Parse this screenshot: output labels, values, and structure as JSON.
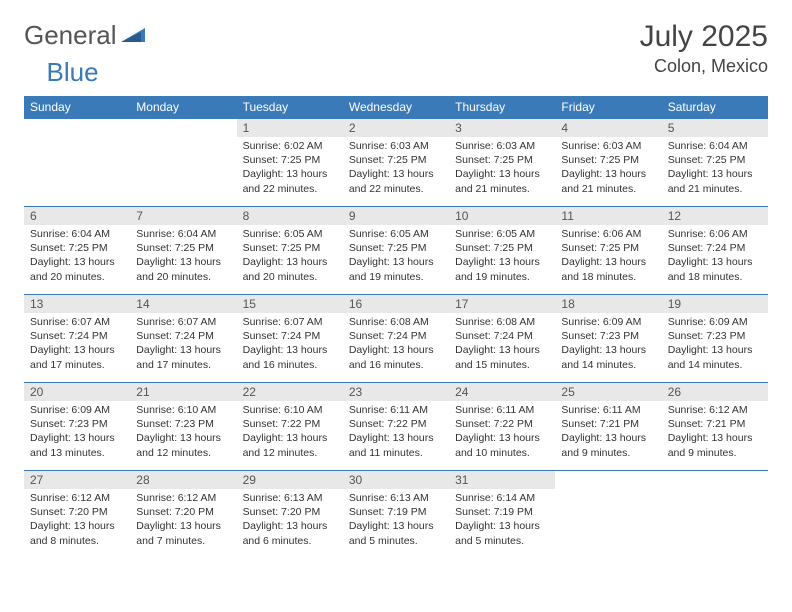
{
  "logo": {
    "text1": "General",
    "text2": "Blue"
  },
  "title": "July 2025",
  "location": "Colon, Mexico",
  "colors": {
    "header_bg": "#3a7ab8",
    "header_text": "#ffffff",
    "daynum_bg": "#e8e8e8",
    "text": "#333333",
    "logo_gray": "#555555",
    "logo_blue": "#3a7ab8"
  },
  "day_headers": [
    "Sunday",
    "Monday",
    "Tuesday",
    "Wednesday",
    "Thursday",
    "Friday",
    "Saturday"
  ],
  "weeks": [
    [
      {
        "num": "",
        "sunrise": "",
        "sunset": "",
        "daylight": "",
        "empty": true
      },
      {
        "num": "",
        "sunrise": "",
        "sunset": "",
        "daylight": "",
        "empty": true
      },
      {
        "num": "1",
        "sunrise": "Sunrise: 6:02 AM",
        "sunset": "Sunset: 7:25 PM",
        "daylight": "Daylight: 13 hours and 22 minutes."
      },
      {
        "num": "2",
        "sunrise": "Sunrise: 6:03 AM",
        "sunset": "Sunset: 7:25 PM",
        "daylight": "Daylight: 13 hours and 22 minutes."
      },
      {
        "num": "3",
        "sunrise": "Sunrise: 6:03 AM",
        "sunset": "Sunset: 7:25 PM",
        "daylight": "Daylight: 13 hours and 21 minutes."
      },
      {
        "num": "4",
        "sunrise": "Sunrise: 6:03 AM",
        "sunset": "Sunset: 7:25 PM",
        "daylight": "Daylight: 13 hours and 21 minutes."
      },
      {
        "num": "5",
        "sunrise": "Sunrise: 6:04 AM",
        "sunset": "Sunset: 7:25 PM",
        "daylight": "Daylight: 13 hours and 21 minutes."
      }
    ],
    [
      {
        "num": "6",
        "sunrise": "Sunrise: 6:04 AM",
        "sunset": "Sunset: 7:25 PM",
        "daylight": "Daylight: 13 hours and 20 minutes."
      },
      {
        "num": "7",
        "sunrise": "Sunrise: 6:04 AM",
        "sunset": "Sunset: 7:25 PM",
        "daylight": "Daylight: 13 hours and 20 minutes."
      },
      {
        "num": "8",
        "sunrise": "Sunrise: 6:05 AM",
        "sunset": "Sunset: 7:25 PM",
        "daylight": "Daylight: 13 hours and 20 minutes."
      },
      {
        "num": "9",
        "sunrise": "Sunrise: 6:05 AM",
        "sunset": "Sunset: 7:25 PM",
        "daylight": "Daylight: 13 hours and 19 minutes."
      },
      {
        "num": "10",
        "sunrise": "Sunrise: 6:05 AM",
        "sunset": "Sunset: 7:25 PM",
        "daylight": "Daylight: 13 hours and 19 minutes."
      },
      {
        "num": "11",
        "sunrise": "Sunrise: 6:06 AM",
        "sunset": "Sunset: 7:25 PM",
        "daylight": "Daylight: 13 hours and 18 minutes."
      },
      {
        "num": "12",
        "sunrise": "Sunrise: 6:06 AM",
        "sunset": "Sunset: 7:24 PM",
        "daylight": "Daylight: 13 hours and 18 minutes."
      }
    ],
    [
      {
        "num": "13",
        "sunrise": "Sunrise: 6:07 AM",
        "sunset": "Sunset: 7:24 PM",
        "daylight": "Daylight: 13 hours and 17 minutes."
      },
      {
        "num": "14",
        "sunrise": "Sunrise: 6:07 AM",
        "sunset": "Sunset: 7:24 PM",
        "daylight": "Daylight: 13 hours and 17 minutes."
      },
      {
        "num": "15",
        "sunrise": "Sunrise: 6:07 AM",
        "sunset": "Sunset: 7:24 PM",
        "daylight": "Daylight: 13 hours and 16 minutes."
      },
      {
        "num": "16",
        "sunrise": "Sunrise: 6:08 AM",
        "sunset": "Sunset: 7:24 PM",
        "daylight": "Daylight: 13 hours and 16 minutes."
      },
      {
        "num": "17",
        "sunrise": "Sunrise: 6:08 AM",
        "sunset": "Sunset: 7:24 PM",
        "daylight": "Daylight: 13 hours and 15 minutes."
      },
      {
        "num": "18",
        "sunrise": "Sunrise: 6:09 AM",
        "sunset": "Sunset: 7:23 PM",
        "daylight": "Daylight: 13 hours and 14 minutes."
      },
      {
        "num": "19",
        "sunrise": "Sunrise: 6:09 AM",
        "sunset": "Sunset: 7:23 PM",
        "daylight": "Daylight: 13 hours and 14 minutes."
      }
    ],
    [
      {
        "num": "20",
        "sunrise": "Sunrise: 6:09 AM",
        "sunset": "Sunset: 7:23 PM",
        "daylight": "Daylight: 13 hours and 13 minutes."
      },
      {
        "num": "21",
        "sunrise": "Sunrise: 6:10 AM",
        "sunset": "Sunset: 7:23 PM",
        "daylight": "Daylight: 13 hours and 12 minutes."
      },
      {
        "num": "22",
        "sunrise": "Sunrise: 6:10 AM",
        "sunset": "Sunset: 7:22 PM",
        "daylight": "Daylight: 13 hours and 12 minutes."
      },
      {
        "num": "23",
        "sunrise": "Sunrise: 6:11 AM",
        "sunset": "Sunset: 7:22 PM",
        "daylight": "Daylight: 13 hours and 11 minutes."
      },
      {
        "num": "24",
        "sunrise": "Sunrise: 6:11 AM",
        "sunset": "Sunset: 7:22 PM",
        "daylight": "Daylight: 13 hours and 10 minutes."
      },
      {
        "num": "25",
        "sunrise": "Sunrise: 6:11 AM",
        "sunset": "Sunset: 7:21 PM",
        "daylight": "Daylight: 13 hours and 9 minutes."
      },
      {
        "num": "26",
        "sunrise": "Sunrise: 6:12 AM",
        "sunset": "Sunset: 7:21 PM",
        "daylight": "Daylight: 13 hours and 9 minutes."
      }
    ],
    [
      {
        "num": "27",
        "sunrise": "Sunrise: 6:12 AM",
        "sunset": "Sunset: 7:20 PM",
        "daylight": "Daylight: 13 hours and 8 minutes."
      },
      {
        "num": "28",
        "sunrise": "Sunrise: 6:12 AM",
        "sunset": "Sunset: 7:20 PM",
        "daylight": "Daylight: 13 hours and 7 minutes."
      },
      {
        "num": "29",
        "sunrise": "Sunrise: 6:13 AM",
        "sunset": "Sunset: 7:20 PM",
        "daylight": "Daylight: 13 hours and 6 minutes."
      },
      {
        "num": "30",
        "sunrise": "Sunrise: 6:13 AM",
        "sunset": "Sunset: 7:19 PM",
        "daylight": "Daylight: 13 hours and 5 minutes."
      },
      {
        "num": "31",
        "sunrise": "Sunrise: 6:14 AM",
        "sunset": "Sunset: 7:19 PM",
        "daylight": "Daylight: 13 hours and 5 minutes."
      },
      {
        "num": "",
        "sunrise": "",
        "sunset": "",
        "daylight": "",
        "empty": true
      },
      {
        "num": "",
        "sunrise": "",
        "sunset": "",
        "daylight": "",
        "empty": true
      }
    ]
  ]
}
